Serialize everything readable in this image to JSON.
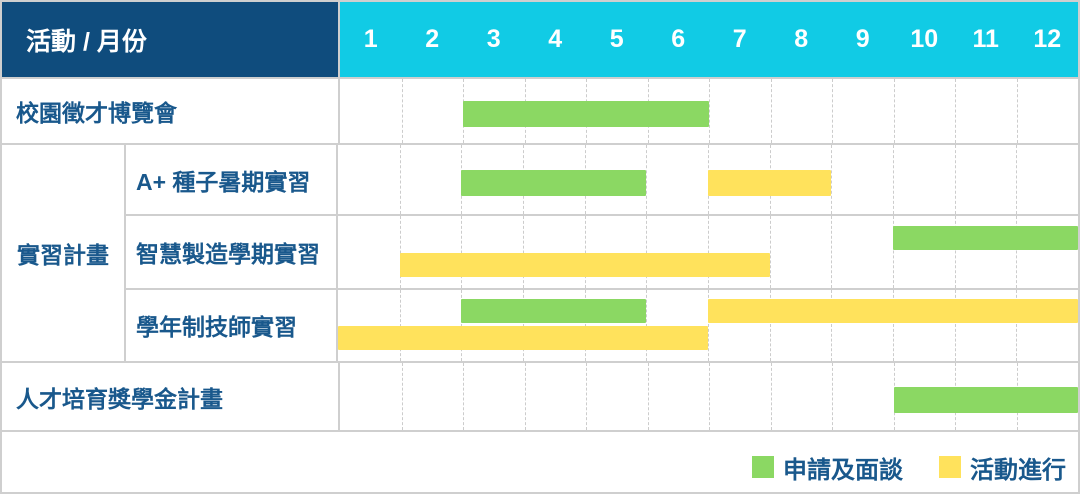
{
  "table": {
    "corner_title": "活動 / 月份",
    "group_label": "實習計畫"
  },
  "colors": {
    "header_bg": "#0f4c7d",
    "months_bg": "#11cbe5",
    "bar_green": "#8bd863",
    "bar_yellow": "#ffe25c",
    "label_text": "#19588c",
    "grid_border": "#cfcfcf"
  },
  "chart_data": {
    "type": "gantt",
    "title": "活動 / 月份",
    "month_labels": [
      "1",
      "2",
      "3",
      "4",
      "5",
      "6",
      "7",
      "8",
      "9",
      "10",
      "11",
      "12"
    ],
    "x_range": [
      1,
      12
    ],
    "grid": "dashed-vertical-month-lines",
    "legend_position": "bottom-right",
    "rows": [
      {
        "group": null,
        "label": "校園徵才博覽會",
        "tracks": [
          [
            {
              "start": 3,
              "end": 6,
              "type": "green"
            }
          ]
        ]
      },
      {
        "group": "實習計畫",
        "label": "A+ 種子暑期實習",
        "tracks": [
          [
            {
              "start": 3,
              "end": 5,
              "type": "green"
            },
            {
              "start": 7,
              "end": 8,
              "type": "yellow"
            }
          ]
        ]
      },
      {
        "group": "實習計畫",
        "label": "智慧製造學期實習",
        "tracks": [
          [
            {
              "start": 10,
              "end": 12,
              "type": "green"
            }
          ],
          [
            {
              "start": 2,
              "end": 7,
              "type": "yellow"
            }
          ]
        ]
      },
      {
        "group": "實習計畫",
        "label": "學年制技師實習",
        "tracks": [
          [
            {
              "start": 3,
              "end": 5,
              "type": "green"
            },
            {
              "start": 7,
              "end": 12,
              "type": "yellow"
            }
          ],
          [
            {
              "start": 1,
              "end": 6,
              "type": "yellow"
            }
          ]
        ]
      },
      {
        "group": null,
        "label": "人才培育獎學金計畫",
        "tracks": [
          [
            {
              "start": 10,
              "end": 12,
              "type": "green"
            }
          ]
        ]
      }
    ],
    "legend": [
      {
        "swatch": "green",
        "label": "申請及面談"
      },
      {
        "swatch": "yellow",
        "label": "活動進行"
      }
    ]
  }
}
